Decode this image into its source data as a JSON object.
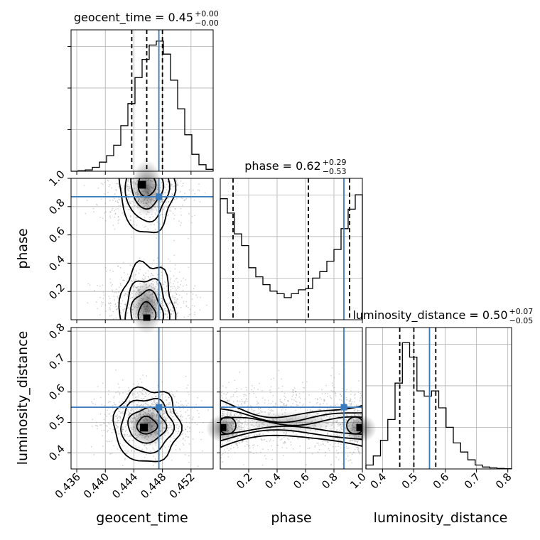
{
  "chart_data": {
    "type": "corner",
    "parameters": [
      "geocent_time",
      "phase",
      "luminosity_distance"
    ],
    "truth": {
      "geocent_time": 0.4475,
      "phase": 0.87,
      "luminosity_distance": 0.55
    },
    "ranges": {
      "geocent_time": [
        0.4352,
        0.4551
      ],
      "phase": [
        0.0,
        1.0
      ],
      "luminosity_distance": [
        0.347,
        0.812
      ]
    },
    "titles": {
      "geocent_time": {
        "label": "geocent_time = 0.45",
        "sup": "+0.00",
        "sub": "−0.00"
      },
      "phase": {
        "label": "phase = 0.62",
        "sup": "+0.29",
        "sub": "−0.53"
      },
      "luminosity_distance": {
        "label": "luminosity_distance = 0.50",
        "sup": "+0.07",
        "sub": "−0.05"
      }
    },
    "axis_labels": {
      "x": [
        "geocent_time",
        "phase",
        "luminosity_distance"
      ],
      "y": [
        "phase",
        "luminosity_distance"
      ]
    },
    "ticks": {
      "geocent_time": [
        0.436,
        0.44,
        0.444,
        0.448,
        0.452
      ],
      "phase_y": [
        0.2,
        0.4,
        0.6,
        0.8,
        1.0
      ],
      "phase_x": [
        0.2,
        0.4,
        0.6,
        0.8,
        1.0
      ],
      "luminosity_distance_y": [
        0.4,
        0.5,
        0.6,
        0.7,
        0.8
      ],
      "luminosity_distance_x": [
        0.4,
        0.5,
        0.6,
        0.7,
        0.8
      ]
    },
    "quantiles": {
      "geocent_time": [
        0.4437,
        0.4458,
        0.448
      ],
      "phase": [
        0.09,
        0.62,
        0.91
      ],
      "luminosity_distance": [
        0.455,
        0.5,
        0.57
      ]
    },
    "histograms": {
      "geocent_time": {
        "edges_from": 0.4352,
        "edges_to": 0.4551,
        "counts": [
          0,
          0.004,
          0.01,
          0.03,
          0.07,
          0.12,
          0.2,
          0.35,
          0.52,
          0.72,
          0.86,
          0.97,
          1.0,
          0.9,
          0.7,
          0.48,
          0.28,
          0.13,
          0.05,
          0.015
        ]
      },
      "phase": {
        "edges_from": 0.0,
        "edges_to": 1.0,
        "counts": [
          0.93,
          0.82,
          0.66,
          0.57,
          0.4,
          0.33,
          0.27,
          0.22,
          0.2,
          0.17,
          0.2,
          0.23,
          0.24,
          0.32,
          0.37,
          0.45,
          0.54,
          0.7,
          0.85,
          0.96
        ]
      },
      "luminosity_distance": {
        "edges_from": 0.347,
        "edges_to": 0.812,
        "counts": [
          0.03,
          0.1,
          0.22,
          0.38,
          0.66,
          0.97,
          0.86,
          0.6,
          0.56,
          0.6,
          0.47,
          0.32,
          0.2,
          0.13,
          0.07,
          0.03,
          0.015,
          0.008,
          0.004,
          0.002
        ]
      }
    },
    "grid": true
  }
}
